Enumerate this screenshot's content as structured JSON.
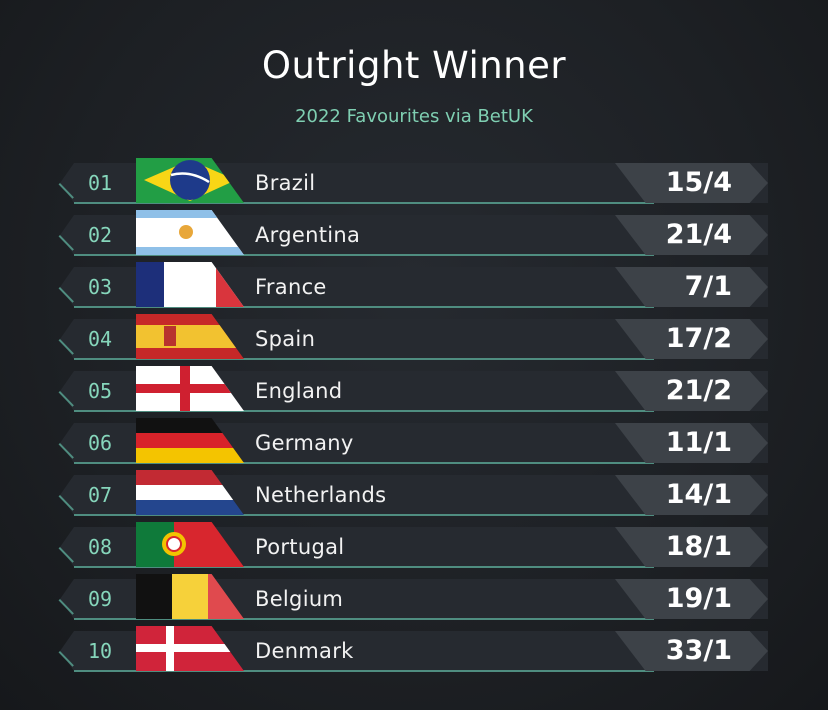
{
  "header": {
    "title": "Outright Winner",
    "subtitle": "2022 Favourites via BetUK"
  },
  "colors": {
    "accent": "#7fcfb2",
    "row_bg": "#262a30",
    "odds_bg": "#3d4248"
  },
  "rows": [
    {
      "rank": "01",
      "country": "Brazil",
      "flag": "brazil-flag",
      "odds": "15/4"
    },
    {
      "rank": "02",
      "country": "Argentina",
      "flag": "argentina-flag",
      "odds": "21/4"
    },
    {
      "rank": "03",
      "country": "France",
      "flag": "france-flag",
      "odds": "7/1"
    },
    {
      "rank": "04",
      "country": "Spain",
      "flag": "spain-flag",
      "odds": "17/2"
    },
    {
      "rank": "05",
      "country": "England",
      "flag": "england-flag",
      "odds": "21/2"
    },
    {
      "rank": "06",
      "country": "Germany",
      "flag": "germany-flag",
      "odds": "11/1"
    },
    {
      "rank": "07",
      "country": "Netherlands",
      "flag": "netherlands-flag",
      "odds": "14/1"
    },
    {
      "rank": "08",
      "country": "Portugal",
      "flag": "portugal-flag",
      "odds": "18/1"
    },
    {
      "rank": "09",
      "country": "Belgium",
      "flag": "belgium-flag",
      "odds": "19/1"
    },
    {
      "rank": "10",
      "country": "Denmark",
      "flag": "denmark-flag",
      "odds": "33/1"
    }
  ]
}
